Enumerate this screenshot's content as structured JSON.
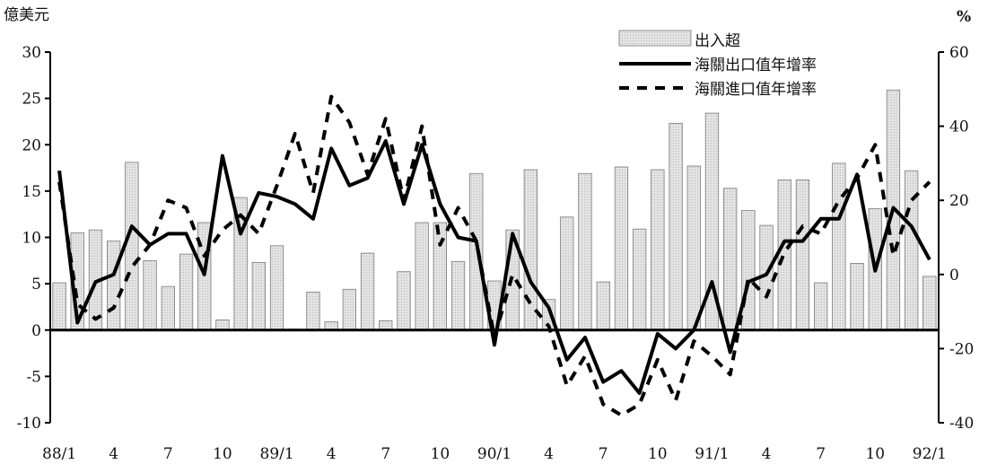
{
  "chart_data": {
    "type": "bar+line",
    "y_left_unit": "億美元",
    "y_right_unit": "%",
    "y_left_ticks": [
      "30",
      "25",
      "20",
      "15",
      "10",
      "5",
      "0",
      "-5",
      "-10"
    ],
    "y_right_ticks": [
      "60",
      "40",
      "20",
      "0",
      "-20",
      "-40"
    ],
    "ylim_left": [
      -10,
      30
    ],
    "ylim_right": [
      -40,
      60
    ],
    "x_tick_labels": [
      "88/1",
      "4",
      "7",
      "10",
      "89/1",
      "4",
      "7",
      "10",
      "90/1",
      "4",
      "7",
      "10",
      "91/1",
      "4",
      "7",
      "10",
      "92/1"
    ],
    "months": [
      "88/1",
      "88/2",
      "88/3",
      "88/4",
      "88/5",
      "88/6",
      "88/7",
      "88/8",
      "88/9",
      "88/10",
      "88/11",
      "88/12",
      "89/1",
      "89/2",
      "89/3",
      "89/4",
      "89/5",
      "89/6",
      "89/7",
      "89/8",
      "89/9",
      "89/10",
      "89/11",
      "89/12",
      "90/1",
      "90/2",
      "90/3",
      "90/4",
      "90/5",
      "90/6",
      "90/7",
      "90/8",
      "90/9",
      "90/10",
      "90/11",
      "90/12",
      "91/1",
      "91/2",
      "91/3",
      "91/4",
      "91/5",
      "91/6",
      "91/7",
      "91/8",
      "91/9",
      "91/10",
      "91/11",
      "91/12",
      "92/1"
    ],
    "legend": [
      "出入超",
      "海關出口值年增率",
      "海關進口值年增率"
    ],
    "legend_position": "top-right",
    "series": [
      {
        "name": "出入超",
        "type": "bar",
        "axis": "left",
        "color": "#e3e3e3",
        "values": [
          5.1,
          10.5,
          10.8,
          9.6,
          18.1,
          7.5,
          4.7,
          8.2,
          11.6,
          1.1,
          14.3,
          7.3,
          9.1,
          0.1,
          4.1,
          0.9,
          4.4,
          8.3,
          1.0,
          6.3,
          11.6,
          11.6,
          7.4,
          16.9,
          5.3,
          10.8,
          17.3,
          3.3,
          12.2,
          16.9,
          5.2,
          17.6,
          10.9,
          17.3,
          22.3,
          17.7,
          23.4,
          15.3,
          12.9,
          11.3,
          16.2,
          16.2,
          5.1,
          18.0,
          7.2,
          13.1,
          25.9,
          17.2,
          5.8
        ]
      },
      {
        "name": "海關出口值年增率",
        "type": "line",
        "axis": "right",
        "style": "solid",
        "color": "#000000",
        "values": [
          28,
          -13,
          -2,
          0,
          13,
          8,
          11,
          11,
          0,
          32,
          11,
          22,
          21,
          19,
          15,
          34,
          24,
          26,
          36,
          19,
          35,
          19,
          10,
          9,
          -19,
          11,
          -2,
          -9,
          -23,
          -17,
          -29,
          -26,
          -32,
          -16,
          -20,
          -15,
          -2,
          -21,
          -2,
          0,
          9,
          9,
          15,
          15,
          27,
          1,
          18,
          13,
          4
        ]
      },
      {
        "name": "海關進口值年增率",
        "type": "line",
        "axis": "right",
        "style": "dashed",
        "color": "#000000",
        "values": [
          25,
          -8,
          -12,
          -9,
          2,
          8,
          20,
          18,
          5,
          12,
          16,
          11,
          24,
          38,
          22,
          48,
          41,
          27,
          42,
          20,
          40,
          8,
          18,
          9,
          -17,
          0,
          -8,
          -14,
          -30,
          -22,
          -35,
          -38,
          -35,
          -23,
          -34,
          -18,
          -22,
          -27,
          -1,
          -6,
          6,
          13,
          11,
          20,
          26,
          35,
          5,
          20,
          25
        ]
      }
    ]
  }
}
